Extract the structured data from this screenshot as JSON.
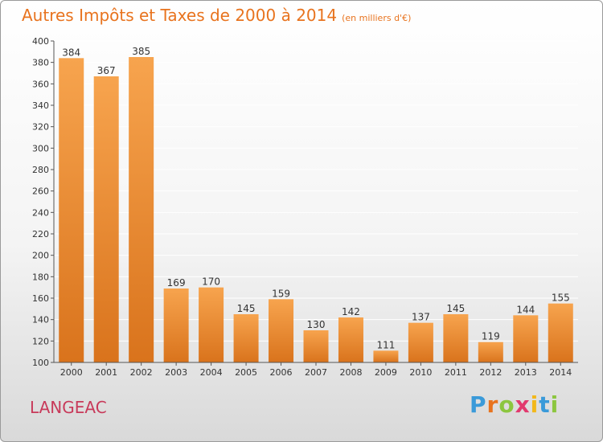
{
  "header": {
    "title": "Autres Impôts et Taxes de 2000 à 2014",
    "subtitle": "(en milliers d'€)"
  },
  "footer": {
    "city": "LANGEAC",
    "logo_letters": [
      "P",
      "r",
      "o",
      "x",
      "i",
      "t",
      "i"
    ],
    "logo_colors": [
      "#3a9ad9",
      "#e8731e",
      "#8cc63f",
      "#e23a6e",
      "#f2b81b",
      "#3a9ad9",
      "#8cc63f"
    ]
  },
  "colors": {
    "bar_light": "#f7a44e",
    "bar_dark": "#d9731c",
    "axis": "#555555",
    "grid": "#ffffff",
    "text": "#333333"
  },
  "chart_data": {
    "type": "bar",
    "title": "Autres Impôts et Taxes de 2000 à 2014",
    "subtitle": "(en milliers d'€)",
    "xlabel": "",
    "ylabel": "",
    "categories": [
      "2000",
      "2001",
      "2002",
      "2003",
      "2004",
      "2005",
      "2006",
      "2007",
      "2008",
      "2009",
      "2010",
      "2011",
      "2012",
      "2013",
      "2014"
    ],
    "values": [
      384,
      367,
      385,
      169,
      170,
      145,
      159,
      130,
      142,
      111,
      137,
      145,
      119,
      144,
      155
    ],
    "ylim": [
      100,
      400
    ],
    "yticks": [
      100,
      120,
      140,
      160,
      180,
      200,
      220,
      240,
      260,
      280,
      300,
      320,
      340,
      360,
      380,
      400
    ],
    "grid": true,
    "legend": "none"
  }
}
